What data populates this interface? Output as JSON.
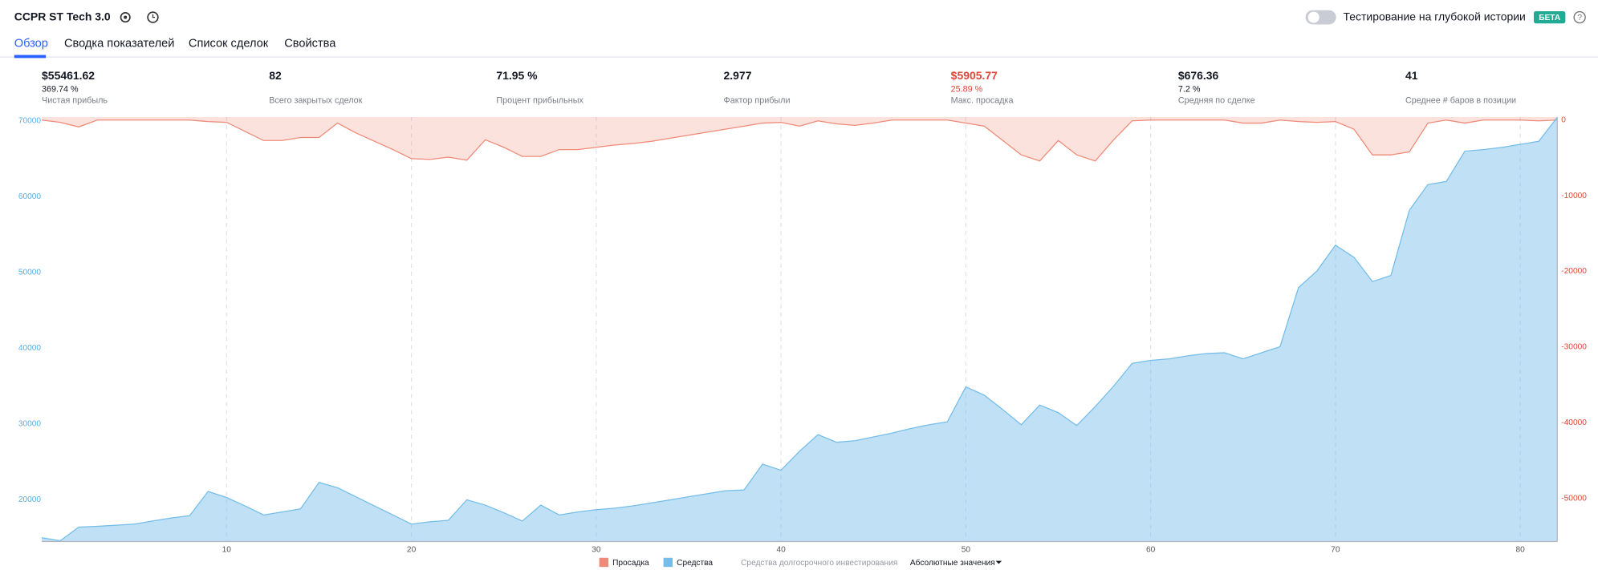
{
  "header": {
    "title": "CCPR ST Tech 3.0",
    "toggle_label": "Тестирование на глубокой истории",
    "badge": "БЕТА"
  },
  "tabs": [
    "Обзор",
    "Сводка показателей",
    "Список сделок",
    "Свойства"
  ],
  "stats": [
    {
      "value": "$55461.62",
      "sub": "369.74 %",
      "label": "Чистая прибыль"
    },
    {
      "value": "82",
      "label": "Всего закрытых сделок"
    },
    {
      "value": "71.95 %",
      "label": "Процент прибыльных"
    },
    {
      "value": "2.977",
      "label": "Фактор прибыли"
    },
    {
      "value": "$5905.77",
      "sub": "25.89 %",
      "label": "Макс. просадка",
      "color": "#e0473a"
    },
    {
      "value": "$676.36",
      "sub": "7.2 %",
      "label": "Средняя по сделке"
    },
    {
      "value": "41",
      "label": "Среднее # баров в позиции"
    }
  ],
  "chart_data": {
    "type": "area",
    "x": [
      0,
      1,
      2,
      3,
      4,
      5,
      6,
      7,
      8,
      9,
      10,
      11,
      12,
      13,
      14,
      15,
      16,
      17,
      18,
      19,
      20,
      21,
      22,
      23,
      24,
      25,
      26,
      27,
      28,
      29,
      30,
      31,
      32,
      33,
      34,
      35,
      36,
      37,
      38,
      39,
      40,
      41,
      42,
      43,
      44,
      45,
      46,
      47,
      48,
      49,
      50,
      51,
      52,
      53,
      54,
      55,
      56,
      57,
      58,
      59,
      60,
      61,
      62,
      63,
      64,
      65,
      66,
      67,
      68,
      69,
      70,
      71,
      72,
      73,
      74,
      75,
      76,
      77,
      78,
      79,
      80,
      81,
      82
    ],
    "series": [
      {
        "name": "Просадка",
        "color": "#ef8a78",
        "axis": "y2",
        "values": [
          0,
          -300,
          -900,
          0,
          0,
          0,
          0,
          0,
          0,
          -200,
          -300,
          -1500,
          -2700,
          -2700,
          -2300,
          -2300,
          -400,
          -1700,
          -2800,
          -3900,
          -5100,
          -5200,
          -4900,
          -5300,
          -2600,
          -3600,
          -4800,
          -4800,
          -3900,
          -3900,
          -3600,
          -3300,
          -3100,
          -2800,
          -2400,
          -2000,
          -1600,
          -1200,
          -800,
          -400,
          -300,
          -800,
          -100,
          -500,
          -700,
          -400,
          0,
          0,
          0,
          0,
          -400,
          -800,
          -2700,
          -4600,
          -5400,
          -2700,
          -4600,
          -5400,
          -2600,
          -100,
          0,
          0,
          0,
          0,
          0,
          -400,
          -400,
          0,
          -200,
          -300,
          -200,
          -1200,
          -4600,
          -4600,
          -4200,
          -400,
          0,
          -400,
          0,
          0,
          0,
          -100,
          0
        ]
      },
      {
        "name": "Средства",
        "color": "#74bde9",
        "values": [
          15000,
          14600,
          16400,
          16500,
          16650,
          16800,
          17200,
          17600,
          17900,
          21100,
          20300,
          19200,
          18000,
          18400,
          18800,
          22300,
          21600,
          20400,
          19200,
          18000,
          16800,
          17100,
          17300,
          20000,
          19300,
          18300,
          17200,
          19300,
          18000,
          18400,
          18700,
          18900,
          19200,
          19600,
          20000,
          20400,
          20800,
          21200,
          21300,
          24700,
          23900,
          26400,
          28600,
          27600,
          27800,
          28300,
          28800,
          29400,
          29900,
          30300,
          34900,
          33800,
          31900,
          29900,
          32500,
          31500,
          29800,
          32300,
          35000,
          38000,
          38400,
          38600,
          39000,
          39300,
          39400,
          38600,
          39400,
          40200,
          48000,
          50200,
          53600,
          52000,
          48800,
          49600,
          58200,
          61600,
          62000,
          66000,
          66200,
          66500,
          66900,
          67300,
          70462
        ]
      }
    ],
    "legend_extra": "Средства долгосрочного инвестирования",
    "scale_mode": "Абсолютные значения",
    "xlim": [
      0,
      82
    ],
    "xticks": [
      10,
      20,
      30,
      40,
      50,
      60,
      70,
      80
    ],
    "ylim": [
      14500,
      70500
    ],
    "yticks": [
      20000,
      30000,
      40000,
      50000,
      60000,
      70000
    ],
    "y2lim": [
      -55700,
      400
    ],
    "y2ticks": [
      0,
      -10000,
      -20000,
      -30000,
      -40000,
      -50000
    ],
    "grid": true
  }
}
